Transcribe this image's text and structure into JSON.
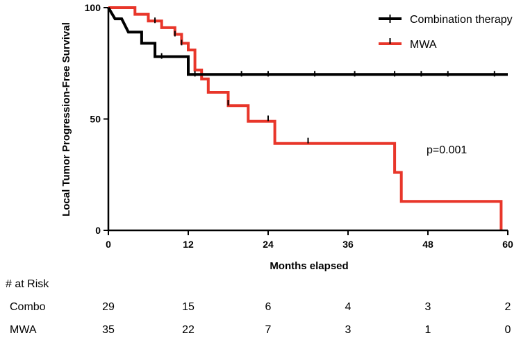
{
  "chart_data": {
    "type": "line",
    "subtype": "kaplan-meier",
    "xlabel": "Months elapsed",
    "ylabel": "Local Tumor Progression-Free Survival",
    "xlim": [
      0,
      60
    ],
    "ylim": [
      0,
      100
    ],
    "x_ticks": [
      "0",
      "12",
      "24",
      "36",
      "48",
      "60"
    ],
    "y_ticks": [
      "0",
      "50",
      "100"
    ],
    "grid": false,
    "legend_position": "top-right",
    "series": [
      {
        "name": "Combination therapy",
        "color": "#000000",
        "steps": [
          [
            0,
            100
          ],
          [
            1,
            95
          ],
          [
            2,
            95
          ],
          [
            3,
            89
          ],
          [
            5,
            89
          ],
          [
            5,
            84
          ],
          [
            7,
            84
          ],
          [
            7,
            78
          ],
          [
            12,
            78
          ],
          [
            12,
            70
          ],
          [
            60,
            70
          ]
        ],
        "censor_marks": [
          [
            8,
            78
          ],
          [
            13,
            70
          ],
          [
            20,
            70
          ],
          [
            24,
            70
          ],
          [
            31,
            70
          ],
          [
            37,
            70
          ],
          [
            43,
            70
          ],
          [
            47,
            70
          ],
          [
            51,
            70
          ],
          [
            58,
            70
          ]
        ]
      },
      {
        "name": "MWA",
        "color": "#e8362a",
        "steps": [
          [
            0,
            100
          ],
          [
            4,
            100
          ],
          [
            4,
            97
          ],
          [
            6,
            97
          ],
          [
            6,
            94
          ],
          [
            8,
            94
          ],
          [
            8,
            91
          ],
          [
            10,
            91
          ],
          [
            10,
            88
          ],
          [
            11,
            88
          ],
          [
            11,
            84
          ],
          [
            12,
            84
          ],
          [
            12,
            81
          ],
          [
            13,
            81
          ],
          [
            13,
            77
          ],
          [
            13,
            72
          ],
          [
            14,
            72
          ],
          [
            14,
            68
          ],
          [
            15,
            68
          ],
          [
            15,
            62
          ],
          [
            18,
            62
          ],
          [
            18,
            56
          ],
          [
            21,
            56
          ],
          [
            21,
            49
          ],
          [
            25,
            49
          ],
          [
            25,
            39
          ],
          [
            43,
            39
          ],
          [
            43,
            26
          ],
          [
            44,
            26
          ],
          [
            44,
            13
          ],
          [
            59,
            13
          ],
          [
            59,
            0
          ]
        ],
        "censor_marks": [
          [
            7,
            94
          ],
          [
            10,
            88
          ],
          [
            11,
            84
          ],
          [
            18,
            57
          ],
          [
            24,
            50
          ],
          [
            30,
            40
          ]
        ]
      }
    ],
    "annotations": [
      "p=0.001"
    ]
  },
  "risk_table": {
    "title": "# at Risk",
    "rows": [
      {
        "label": "Combo",
        "values": [
          "29",
          "15",
          "6",
          "4",
          "3",
          "2"
        ]
      },
      {
        "label": "MWA",
        "values": [
          "35",
          "22",
          "7",
          "3",
          "1",
          "0"
        ]
      }
    ]
  }
}
